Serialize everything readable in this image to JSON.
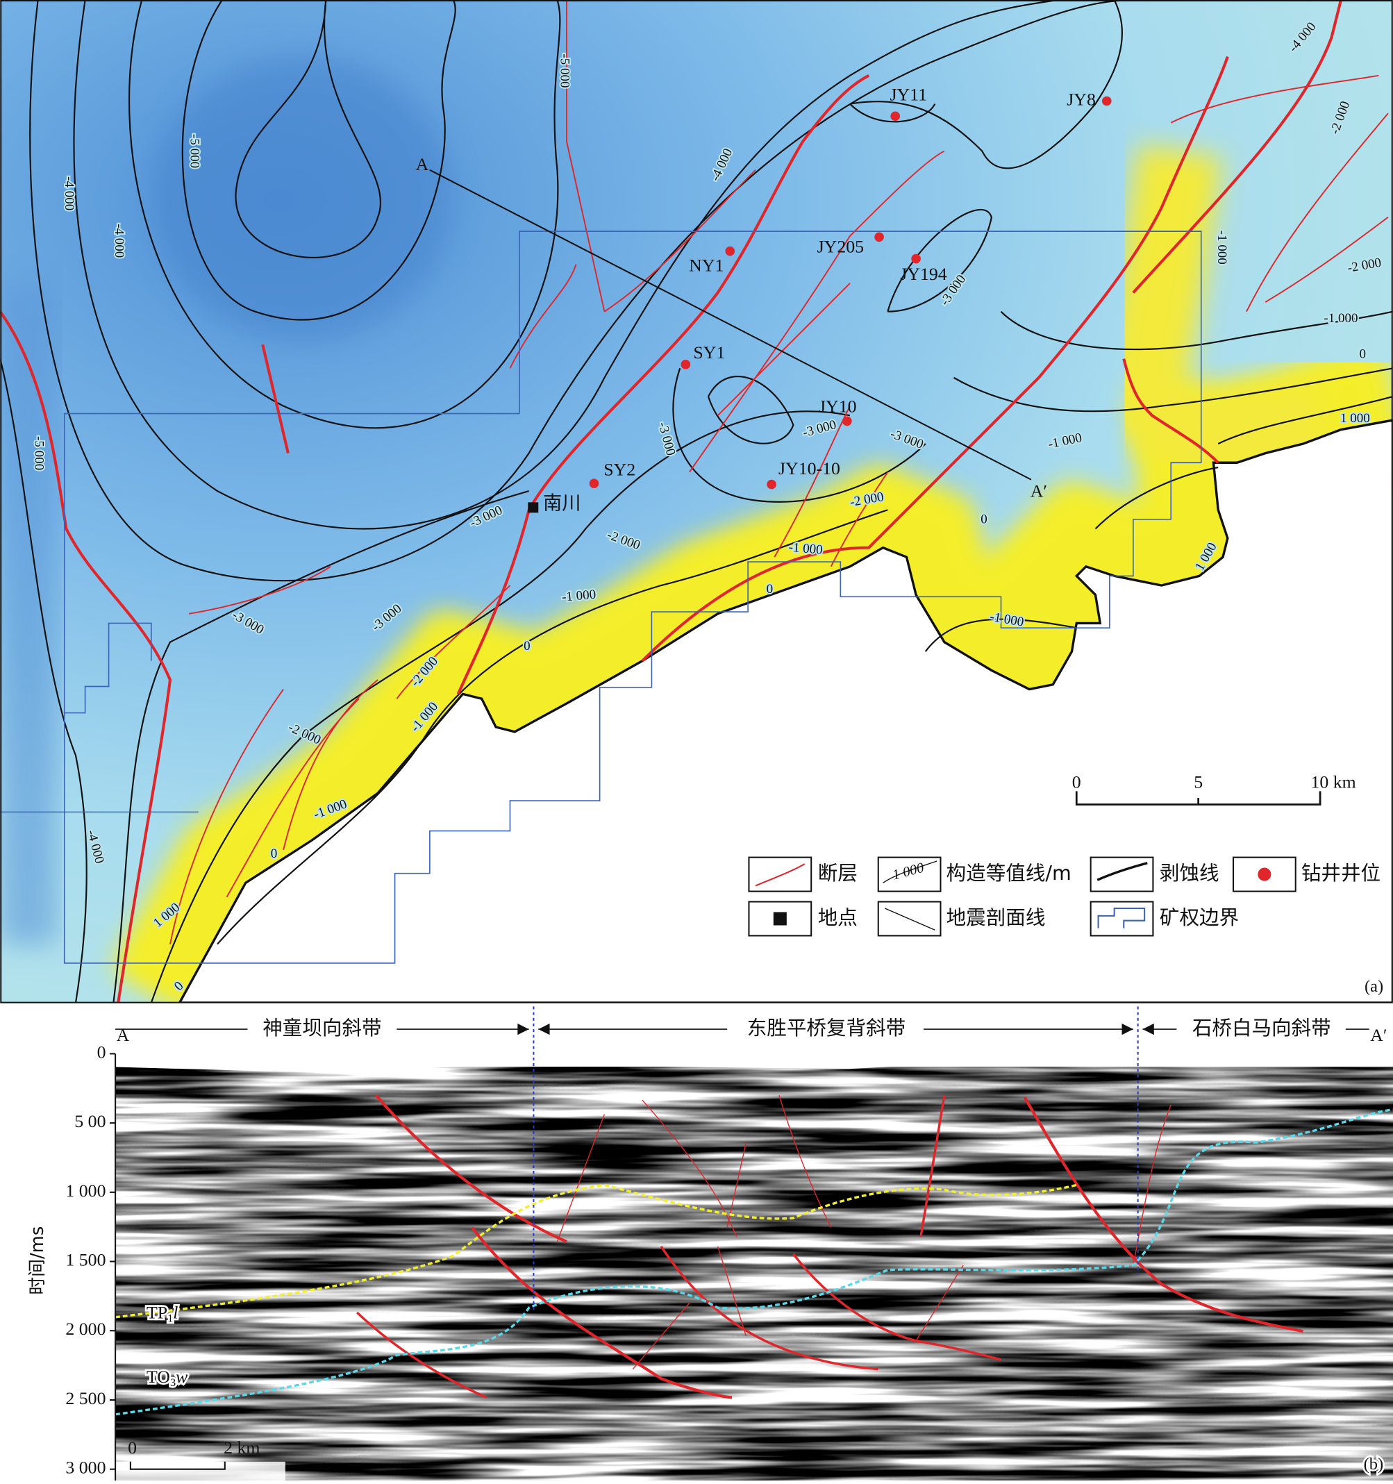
{
  "map": {
    "wells": [
      "JY11",
      "JY8",
      "NY1",
      "JY205",
      "JY194",
      "SY1",
      "JY10",
      "JY10-10",
      "SY2"
    ],
    "place": "南川",
    "line_ends": [
      "A",
      "A′"
    ],
    "contour_labels": [
      "-5 000",
      "-5 000",
      "-4 000",
      "-4 000",
      "-4 000",
      "-4 000",
      "-5 000",
      "-3 000",
      "-2 000",
      "-1 000",
      "-2 000",
      "-1 000",
      "0",
      "1 000",
      "-1 000",
      "-3 000",
      "-3 000",
      "-3 000",
      "-2 000",
      "-1 000",
      "0",
      "0",
      "-3 000",
      "-2 000",
      "-1 000",
      "0",
      "-1 000",
      "1 000",
      "-3 000",
      "-3 000",
      "-2 000",
      "-1 000",
      "-2 000",
      "-1 000",
      "0",
      "-4 000",
      "1 000",
      "0"
    ],
    "scale": [
      "0",
      "5",
      "10 km"
    ],
    "legend": {
      "fault": "断层",
      "contour": "构造等值线/m",
      "contour_sample": "1 000",
      "erosion": "剥蚀线",
      "well": "钻井井位",
      "place": "地点",
      "seismic_line": "地震剖面线",
      "boundary": "矿权边界"
    },
    "panel": "(a)"
  },
  "section": {
    "zones": [
      "神童坝向斜带",
      "东胜平桥复背斜带",
      "石桥白马向斜带"
    ],
    "ends": [
      "A",
      "A′"
    ],
    "ylabel": "时间/ms",
    "ylim": [
      0,
      3000
    ],
    "yticks": [
      0,
      {
        "value": 500,
        "label": "5 00"
      },
      {
        "value": 1000,
        "label": "1 000"
      },
      {
        "value": 1500,
        "label": "1 500"
      },
      {
        "value": 2000,
        "label": "2 000"
      },
      {
        "value": 2500,
        "label": "2 500"
      },
      {
        "value": 3000,
        "label": "3 000"
      }
    ],
    "horizons": [
      {
        "main": "TP",
        "sub": "1",
        "suffix": "l"
      },
      {
        "main": "TO",
        "sub": "3",
        "suffix": "w"
      }
    ],
    "scale": [
      "0",
      "2 km"
    ],
    "panel": "(b)"
  }
}
